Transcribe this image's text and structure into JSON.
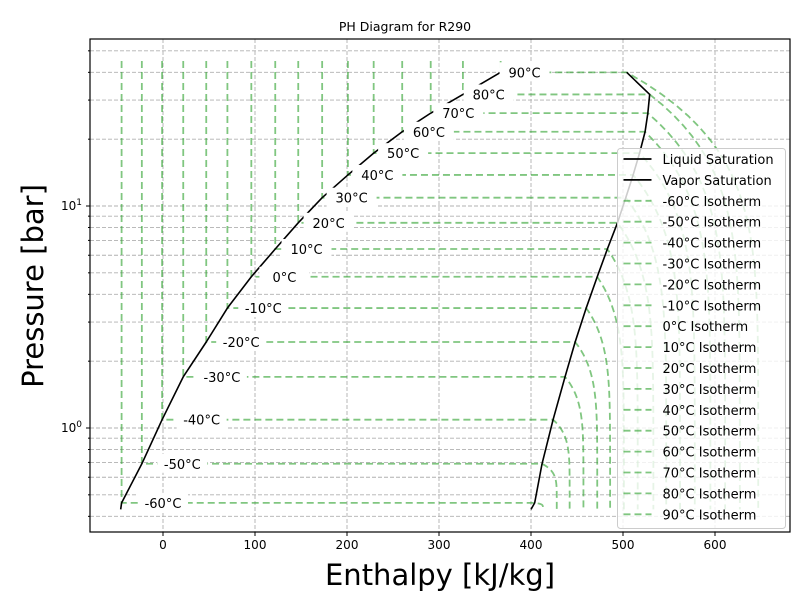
{
  "chart_data": {
    "type": "line",
    "title": "PH Diagram for R290",
    "xlabel": "Enthalpy [kJ/kg]",
    "ylabel": "Pressure [bar]",
    "xlim": [
      -79,
      681
    ],
    "ylim": [
      0.34,
      56
    ],
    "yscale": "log",
    "grid": true,
    "legend_placement": "center",
    "x_ticks": [
      0,
      100,
      200,
      300,
      400,
      500,
      600
    ],
    "x_tick_labels": [
      "0",
      "100",
      "200",
      "300",
      "400",
      "500",
      "600"
    ],
    "y_ticks": [
      1,
      10
    ],
    "y_tick_base": "10",
    "y_tick_exponents": [
      "0",
      "1"
    ],
    "colors": {
      "saturation": "#000000",
      "isotherm": "#2ca02c",
      "grid": "#b0b0b0"
    },
    "liquid_saturation": {
      "name": "Liquid Saturation",
      "h": [
        -46,
        -45,
        -23,
        -1,
        22,
        47,
        70,
        96,
        122,
        147,
        173,
        201,
        229,
        260,
        291,
        326,
        367
      ],
      "p": [
        0.43,
        0.46,
        0.69,
        1.09,
        1.7,
        2.44,
        3.47,
        4.8,
        6.4,
        8.4,
        10.9,
        13.8,
        17.3,
        21.6,
        26.2,
        31.8,
        40.0
      ]
    },
    "vapor_saturation": {
      "name": "Vapor Saturation",
      "h": [
        400,
        404,
        412,
        424,
        437,
        448,
        460,
        472,
        483,
        494,
        503,
        511,
        518,
        524,
        527,
        529,
        504
      ],
      "p": [
        0.43,
        0.46,
        0.69,
        1.09,
        1.7,
        2.44,
        3.47,
        4.8,
        6.4,
        8.4,
        10.9,
        13.8,
        17.3,
        21.6,
        26.2,
        31.8,
        40.0
      ]
    },
    "isotherm_p_max": 45,
    "isotherm_p_min": 0.43,
    "isotherms": [
      {
        "name": "-60°C Isotherm",
        "label": "-60°C",
        "T": -60,
        "p_sat": 0.46,
        "h_liq": -45,
        "h_vap": 404,
        "h_end": 413,
        "label_h": 0
      },
      {
        "name": "-50°C Isotherm",
        "label": "-50°C",
        "T": -50,
        "p_sat": 0.69,
        "h_liq": -23,
        "h_vap": 412,
        "h_end": 428,
        "label_h": 21
      },
      {
        "name": "-40°C Isotherm",
        "label": "-40°C",
        "T": -40,
        "p_sat": 1.09,
        "h_liq": -1,
        "h_vap": 424,
        "h_end": 442,
        "label_h": 42
      },
      {
        "name": "-30°C Isotherm",
        "label": "-30°C",
        "T": -30,
        "p_sat": 1.7,
        "h_liq": 22,
        "h_vap": 437,
        "h_end": 457,
        "label_h": 64
      },
      {
        "name": "-20°C Isotherm",
        "label": "-20°C",
        "T": -20,
        "p_sat": 2.44,
        "h_liq": 47,
        "h_vap": 448,
        "h_end": 472,
        "label_h": 85
      },
      {
        "name": "-10°C Isotherm",
        "label": "-10°C",
        "T": -10,
        "p_sat": 3.47,
        "h_liq": 70,
        "h_vap": 460,
        "h_end": 486,
        "label_h": 109
      },
      {
        "name": "0°C Isotherm",
        "label": "0°C",
        "T": 0,
        "p_sat": 4.8,
        "h_liq": 96,
        "h_vap": 472,
        "h_end": 501,
        "label_h": 132
      },
      {
        "name": "10°C Isotherm",
        "label": "10°C",
        "T": 10,
        "p_sat": 6.4,
        "h_liq": 122,
        "h_vap": 483,
        "h_end": 516,
        "label_h": 156
      },
      {
        "name": "20°C Isotherm",
        "label": "20°C",
        "T": 20,
        "p_sat": 8.4,
        "h_liq": 147,
        "h_vap": 494,
        "h_end": 533,
        "label_h": 180
      },
      {
        "name": "30°C Isotherm",
        "label": "30°C",
        "T": 30,
        "p_sat": 10.9,
        "h_liq": 173,
        "h_vap": 503,
        "h_end": 547,
        "label_h": 205
      },
      {
        "name": "40°C Isotherm",
        "label": "40°C",
        "T": 40,
        "p_sat": 13.8,
        "h_liq": 201,
        "h_vap": 511,
        "h_end": 562,
        "label_h": 233
      },
      {
        "name": "50°C Isotherm",
        "label": "50°C",
        "T": 50,
        "p_sat": 17.3,
        "h_liq": 229,
        "h_vap": 518,
        "h_end": 578,
        "label_h": 261
      },
      {
        "name": "60°C Isotherm",
        "label": "60°C",
        "T": 60,
        "p_sat": 21.6,
        "h_liq": 260,
        "h_vap": 524,
        "h_end": 595,
        "label_h": 289
      },
      {
        "name": "70°C Isotherm",
        "label": "70°C",
        "T": 70,
        "p_sat": 26.2,
        "h_liq": 291,
        "h_vap": 527,
        "h_end": 611,
        "label_h": 321
      },
      {
        "name": "80°C Isotherm",
        "label": "80°C",
        "T": 80,
        "p_sat": 31.8,
        "h_liq": 326,
        "h_vap": 529,
        "h_end": 627,
        "label_h": 354
      },
      {
        "name": "90°C Isotherm",
        "label": "90°C",
        "T": 90,
        "p_sat": 40.0,
        "h_liq": 367,
        "h_vap": 504,
        "h_end": 647,
        "label_h": 393
      }
    ]
  }
}
